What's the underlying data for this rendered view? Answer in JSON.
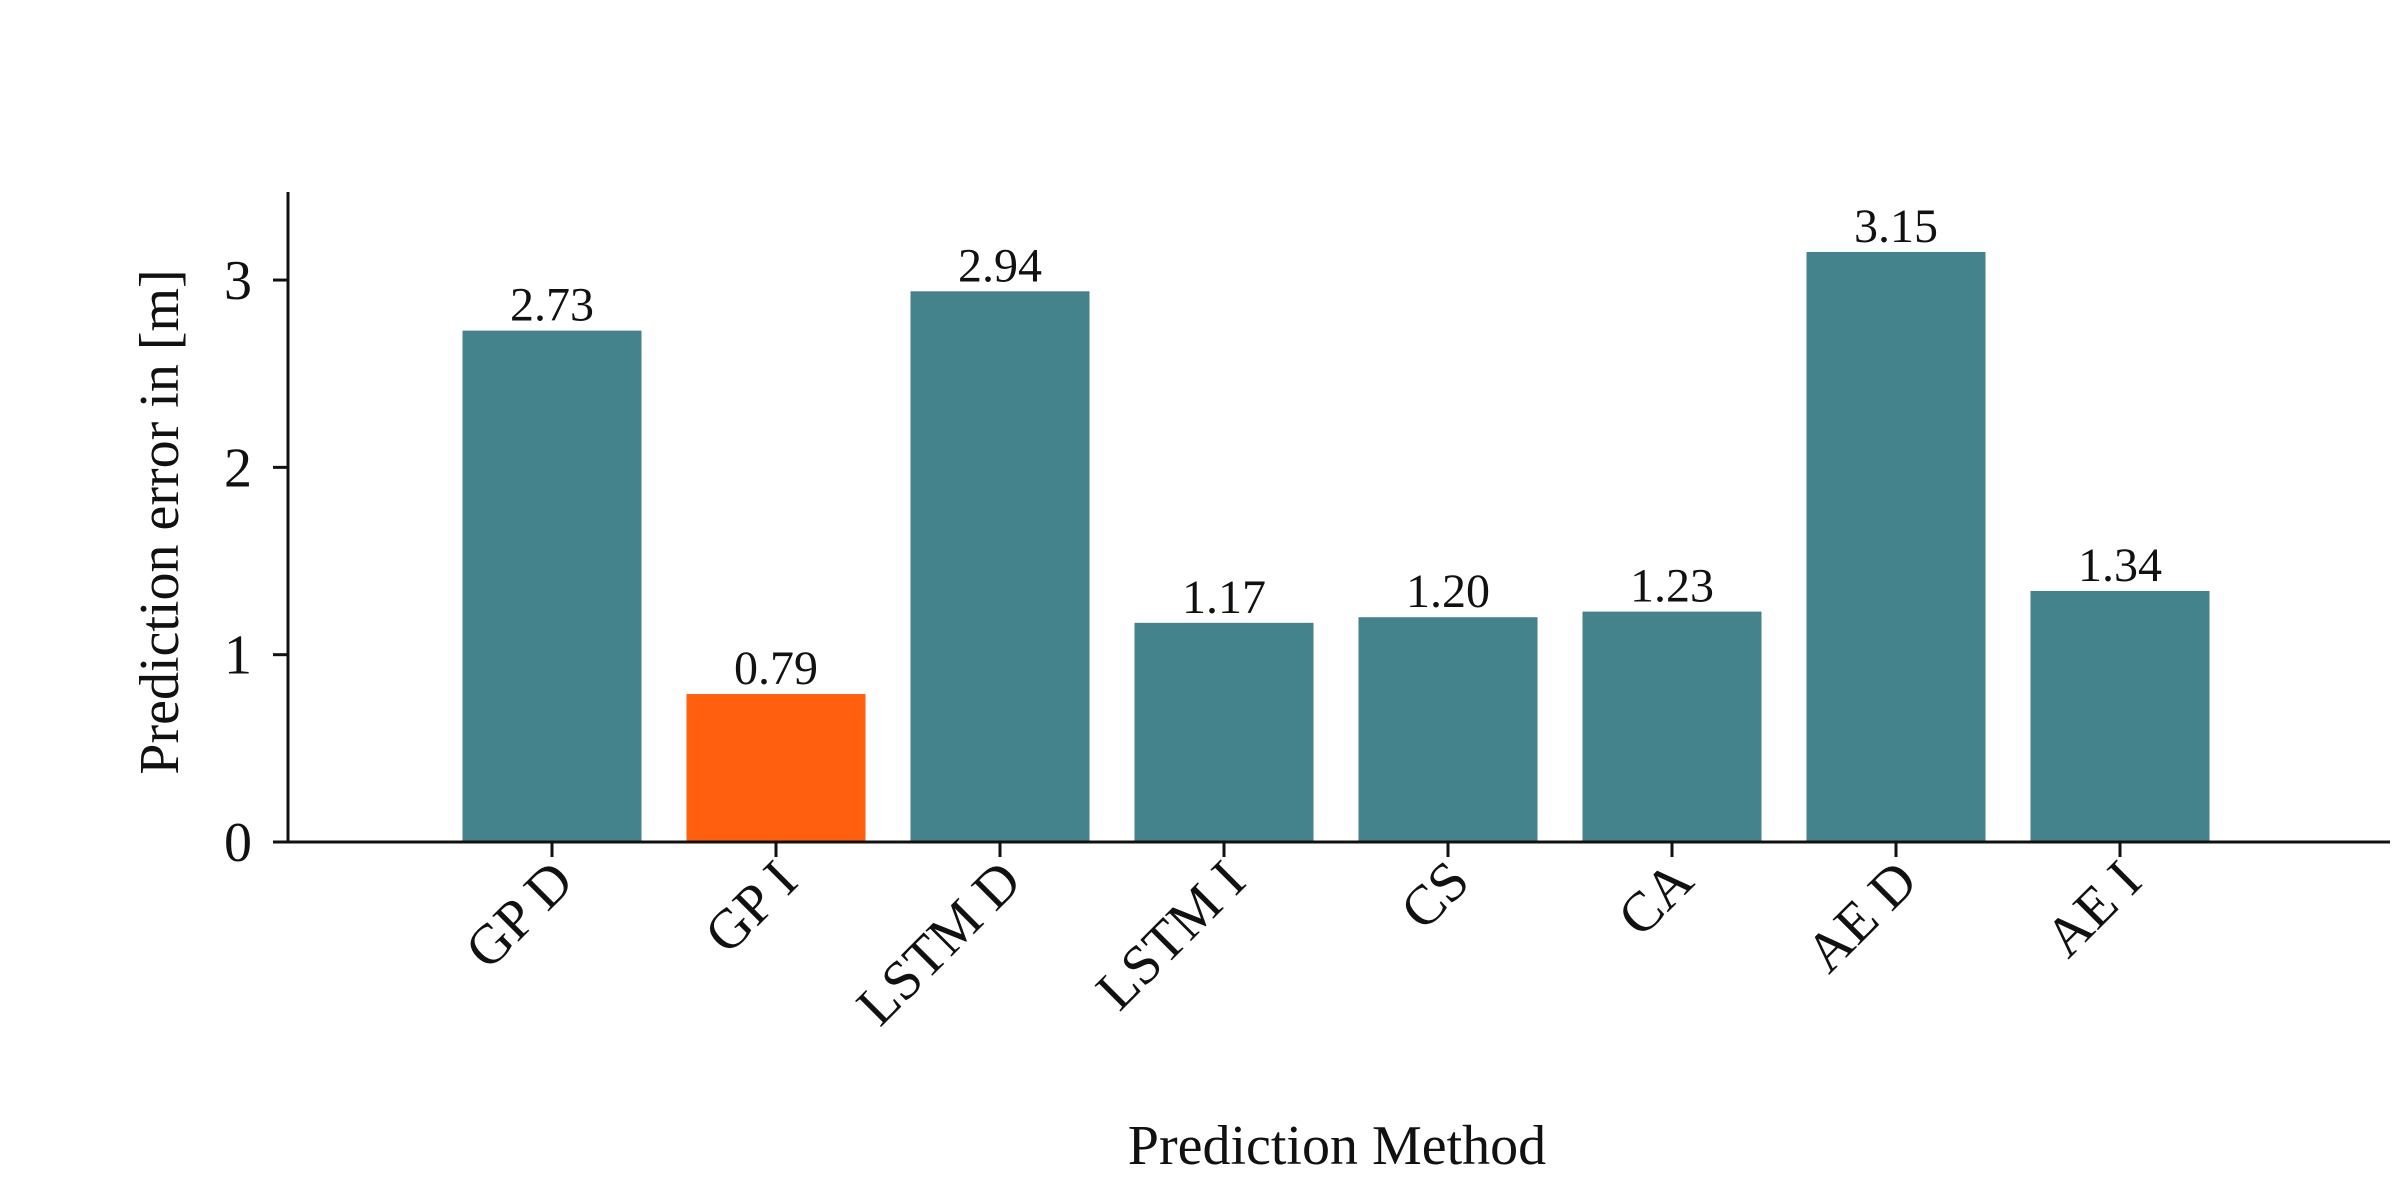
{
  "chart_data": {
    "type": "bar",
    "title": "",
    "xlabel": "Prediction Method",
    "ylabel": "Prediction error in [m]",
    "categories": [
      "GP D",
      "GP I",
      "LSTM D",
      "LSTM I",
      "CS",
      "CA",
      "AE D",
      "AE I"
    ],
    "values": [
      2.73,
      0.79,
      2.94,
      1.17,
      1.2,
      1.23,
      3.15,
      1.34
    ],
    "value_labels": [
      "2.73",
      "0.79",
      "2.94",
      "1.17",
      "1.20",
      "1.23",
      "3.15",
      "1.34"
    ],
    "ylim": [
      0,
      3.47
    ],
    "yticks": [
      0,
      1,
      2,
      3
    ],
    "ytick_labels": [
      "0",
      "1",
      "2",
      "3"
    ],
    "grid": false,
    "colors": {
      "default_bar": "#44828c",
      "highlight_bar": "#ff5f0f",
      "highlight_category": "GP I"
    }
  }
}
